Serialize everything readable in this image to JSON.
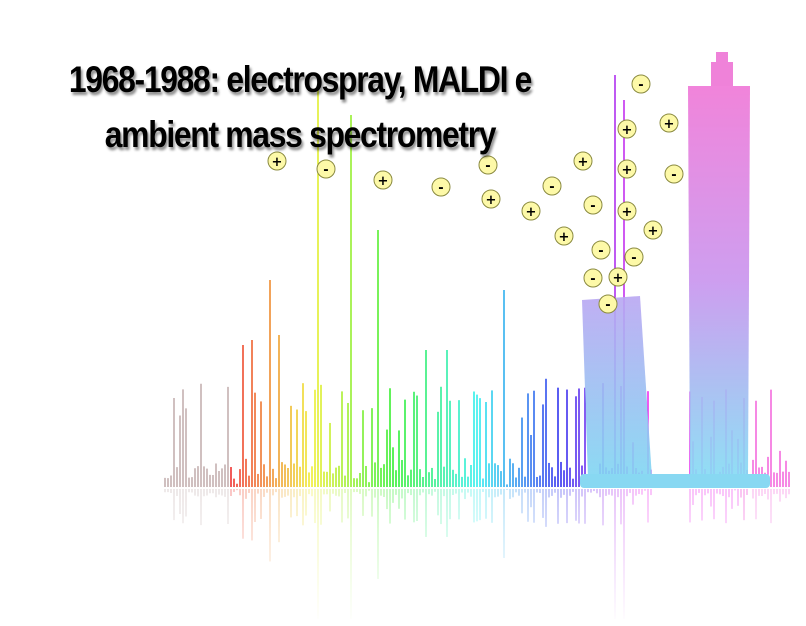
{
  "title": {
    "line1": "1968-1988: electrospray, MALDI e",
    "line2": "ambient mass spectrometry"
  },
  "ions": [
    "+",
    "-",
    "+",
    "-",
    "-",
    "+",
    "+",
    "-",
    "+",
    "+",
    "-",
    "-",
    "-",
    "+",
    "-",
    "+",
    "+",
    "+",
    "-",
    "-",
    "+",
    "+",
    "-"
  ],
  "colors": {
    "ion_fill": "#fdf9a8",
    "ion_stroke": "#8a8a40",
    "tower_left_top": "#b9a6f2",
    "tower_left_bottom": "#7fd6f2",
    "tower_right_top": "#f07ad8",
    "tower_right_bottom": "#86dcf4"
  }
}
